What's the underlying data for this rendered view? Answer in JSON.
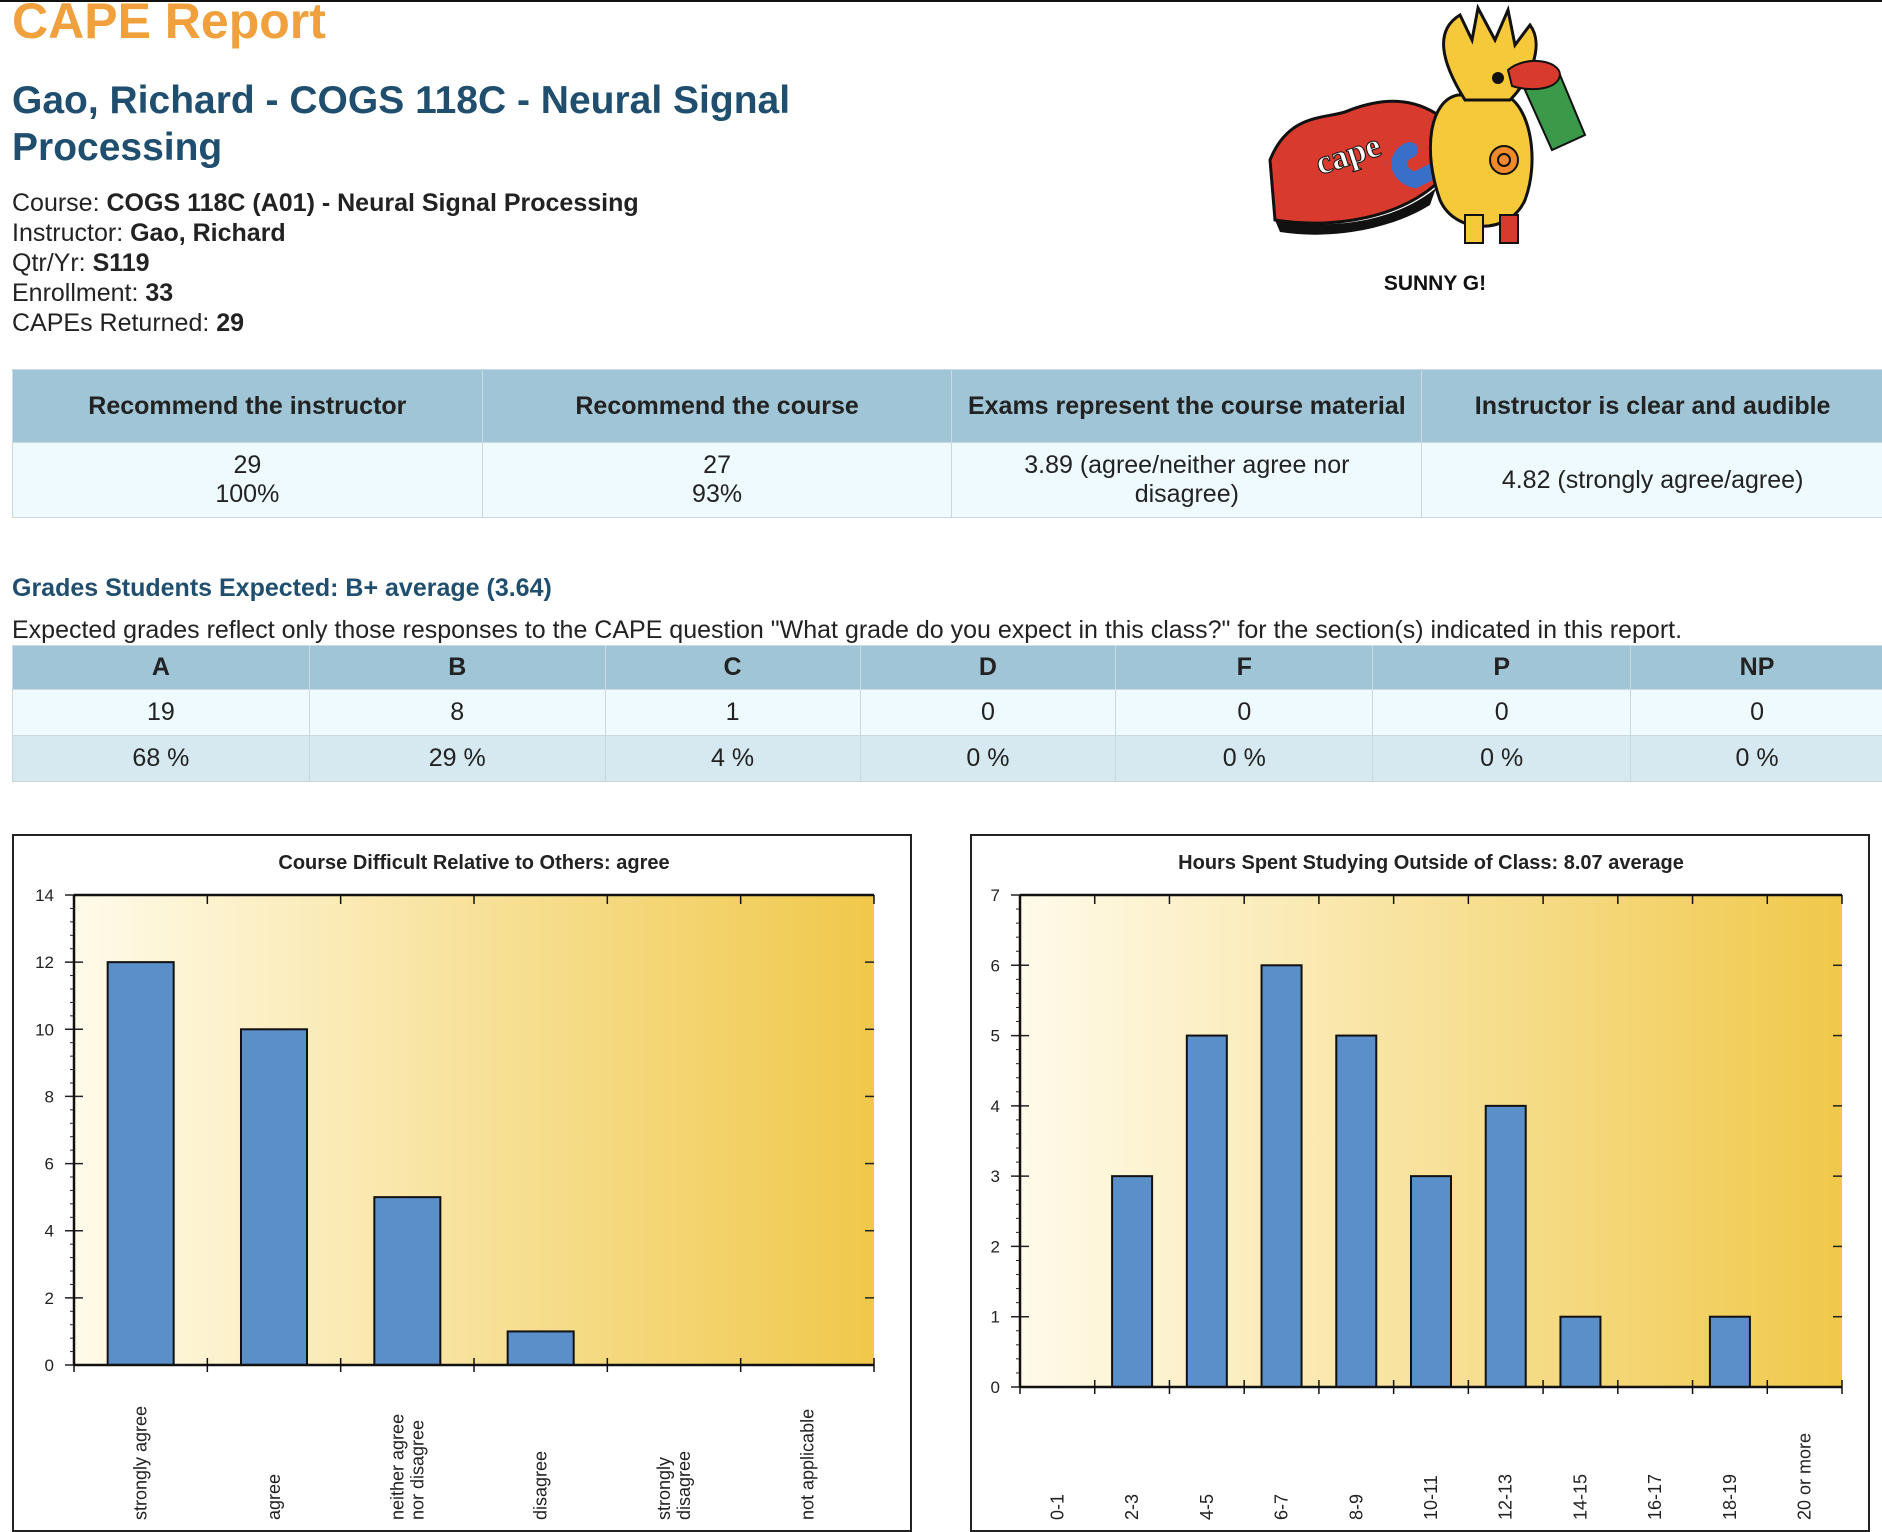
{
  "header": {
    "report_title": "CAPE Report",
    "course_title": "Gao, Richard - COGS 118C - Neural Signal Processing"
  },
  "meta": {
    "course_label": "Course:",
    "course_value": "COGS 118C (A01) - Neural Signal Processing",
    "instructor_label": "Instructor:",
    "instructor_value": "Gao, Richard",
    "qtr_label": "Qtr/Yr:",
    "qtr_value": "S119",
    "enrollment_label": "Enrollment:",
    "enrollment_value": "33",
    "returned_label": "CAPEs Returned:",
    "returned_value": "29"
  },
  "mascot": {
    "logo_text": "cape",
    "caption": "SUNNY G!"
  },
  "colors": {
    "accent_orange": "#f0a03c",
    "heading_blue": "#1f4e6e",
    "table_header": "#9fc5d6",
    "bar_blue": "#5b8fc9",
    "chart_bg_gold": "#f0c84a"
  },
  "summary": {
    "headers": [
      "Recommend the instructor",
      "Recommend the course",
      "Exams represent the course material",
      "Instructor is clear and audible"
    ],
    "cells": [
      [
        "29",
        "100%"
      ],
      [
        "27",
        "93%"
      ],
      [
        "3.89 (agree/neither agree nor disagree)"
      ],
      [
        "4.82 (strongly agree/agree)"
      ]
    ]
  },
  "grades": {
    "heading": "Grades Students Expected: B+ average (3.64)",
    "note": "Expected grades reflect only those responses to the CAPE question \"What grade do you expect in this class?\" for the section(s) indicated in this report.",
    "headers": [
      "A",
      "B",
      "C",
      "D",
      "F",
      "P",
      "NP"
    ],
    "counts": [
      "19",
      "8",
      "1",
      "0",
      "0",
      "0",
      "0"
    ],
    "percents": [
      "68 %",
      "29 %",
      "4 %",
      "0 %",
      "0 %",
      "0 %",
      "0 %"
    ]
  },
  "chart_data": [
    {
      "type": "bar",
      "title": "Course Difficult Relative to Others:  agree",
      "categories": [
        "strongly agree",
        "agree",
        "neither agree nor disagree",
        "disagree",
        "strongly disagree",
        "not applicable"
      ],
      "values": [
        12,
        10,
        5,
        1,
        0,
        0
      ],
      "ylim": [
        0,
        14
      ],
      "yticks": [
        0,
        2,
        4,
        6,
        8,
        10,
        12,
        14
      ],
      "grid": false
    },
    {
      "type": "bar",
      "title": "Hours Spent Studying Outside of Class:  8.07 average",
      "categories": [
        "0-1",
        "2-3",
        "4-5",
        "6-7",
        "8-9",
        "10-11",
        "12-13",
        "14-15",
        "16-17",
        "18-19",
        "20 or more"
      ],
      "values": [
        0,
        3,
        5,
        6,
        5,
        3,
        4,
        1,
        0,
        1,
        0
      ],
      "ylim": [
        0,
        7
      ],
      "yticks": [
        0,
        1,
        2,
        3,
        4,
        5,
        6,
        7
      ],
      "grid": false
    }
  ]
}
